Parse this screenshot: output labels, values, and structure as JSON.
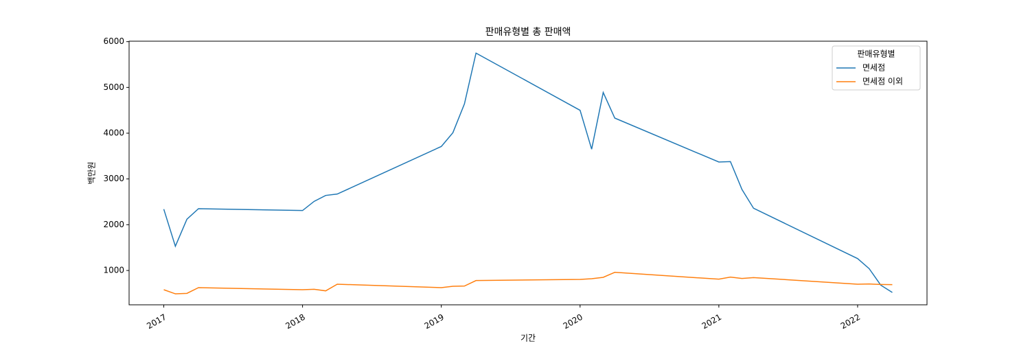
{
  "chart_data": {
    "type": "line",
    "title": "판매유형별 총 판매액",
    "xlabel": "기간",
    "ylabel": "백만원",
    "x": [
      "2017-01",
      "2017-02",
      "2017-03",
      "2017-04",
      "2018-01",
      "2018-02",
      "2018-03",
      "2018-04",
      "2019-01",
      "2019-02",
      "2019-03",
      "2019-04",
      "2020-01",
      "2020-02",
      "2020-03",
      "2020-04",
      "2021-01",
      "2021-02",
      "2021-03",
      "2021-04",
      "2022-01",
      "2022-02",
      "2022-03",
      "2022-04"
    ],
    "series": [
      {
        "name": "면세점",
        "color": "#1f77b4",
        "values": [
          2340,
          1530,
          2120,
          2350,
          2310,
          2510,
          2640,
          2670,
          3710,
          4010,
          4640,
          5750,
          4500,
          3650,
          4890,
          4330,
          3370,
          3380,
          2770,
          2360,
          1260,
          1040,
          680,
          520
        ]
      },
      {
        "name": "면세점 이외",
        "color": "#ff7f0e",
        "values": [
          580,
          490,
          500,
          625,
          580,
          590,
          555,
          700,
          625,
          655,
          660,
          780,
          805,
          820,
          850,
          960,
          810,
          855,
          825,
          845,
          700,
          705,
          695,
          690
        ]
      }
    ],
    "legend_title": "판매유형별",
    "legend": "upper right",
    "xlim": [
      "2016-10",
      "2022-07"
    ],
    "xticks": [
      "2017",
      "2018",
      "2019",
      "2020",
      "2021",
      "2022"
    ],
    "ylim": [
      250,
      6010
    ],
    "yticks": [
      1000,
      2000,
      3000,
      4000,
      5000,
      6000
    ],
    "grid": false
  }
}
